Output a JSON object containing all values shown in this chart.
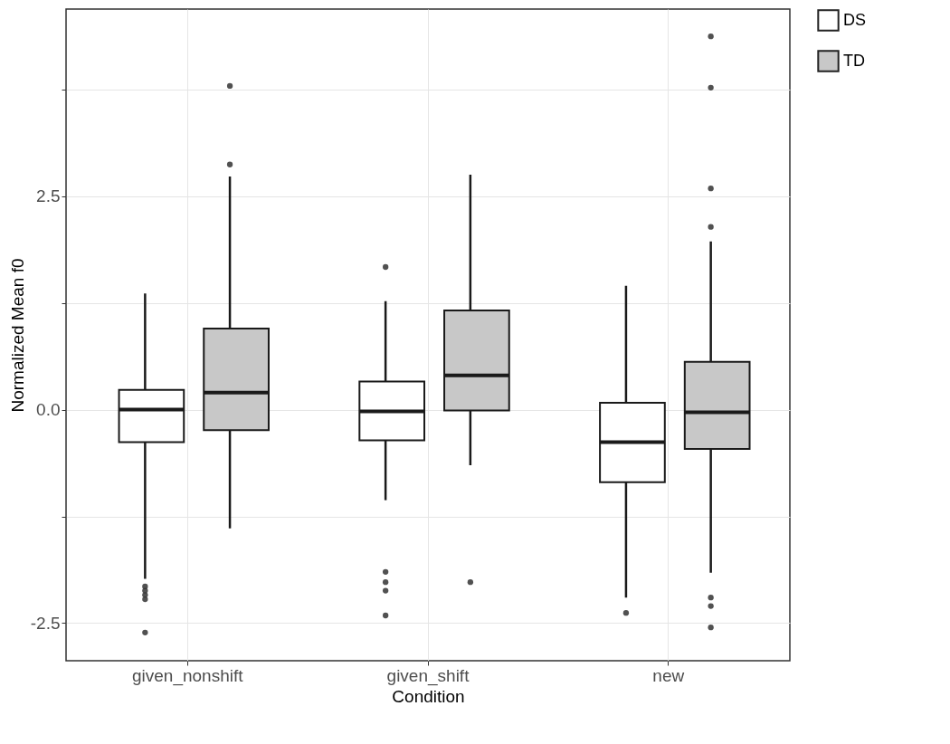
{
  "chart_data": {
    "type": "box",
    "xlabel": "Condition",
    "ylabel": "Normalized Mean f0",
    "categories": [
      "given_nonshift",
      "given_shift",
      "new"
    ],
    "ylim": [
      -2.94,
      4.69
    ],
    "yticks": [
      {
        "value": -2.5,
        "label": "-2.5"
      },
      {
        "value": -1.25,
        "label": null
      },
      {
        "value": 0,
        "label": "0.0"
      },
      {
        "value": 1.25,
        "label": null
      },
      {
        "value": 2.5,
        "label": "2.5"
      },
      {
        "value": 3.75,
        "label": null
      }
    ],
    "grid": true,
    "legend": "right",
    "series": [
      {
        "name": "DS",
        "color": "#ffffff",
        "boxes": [
          {
            "low": -1.98,
            "q1": -0.38,
            "median": 0,
            "q3": 0.23,
            "high": 1.36,
            "outliers": [
              -2.07,
              -2.12,
              -2.17,
              -2.22,
              -2.61
            ]
          },
          {
            "low": -1.06,
            "q1": -0.36,
            "median": -0.02,
            "q3": 0.33,
            "high": 1.27,
            "outliers": [
              1.67,
              -1.9,
              -2.02,
              -2.12,
              -2.41
            ]
          },
          {
            "low": -2.2,
            "q1": -0.85,
            "median": -0.38,
            "q3": 0.08,
            "high": 1.45,
            "outliers": [
              -2.38
            ]
          }
        ]
      },
      {
        "name": "TD",
        "color": "#c8c8c8",
        "boxes": [
          {
            "low": -1.39,
            "q1": -0.24,
            "median": 0.2,
            "q3": 0.95,
            "high": 2.73,
            "outliers": [
              3.79,
              2.87
            ]
          },
          {
            "low": -0.65,
            "q1": -0.01,
            "median": 0.4,
            "q3": 1.16,
            "high": 2.75,
            "outliers": [
              -2.02
            ]
          },
          {
            "low": -1.91,
            "q1": -0.46,
            "median": -0.03,
            "q3": 0.56,
            "high": 1.97,
            "outliers": [
              4.37,
              3.77,
              2.59,
              2.14,
              -2.2,
              -2.3,
              -2.55
            ]
          }
        ]
      }
    ]
  }
}
